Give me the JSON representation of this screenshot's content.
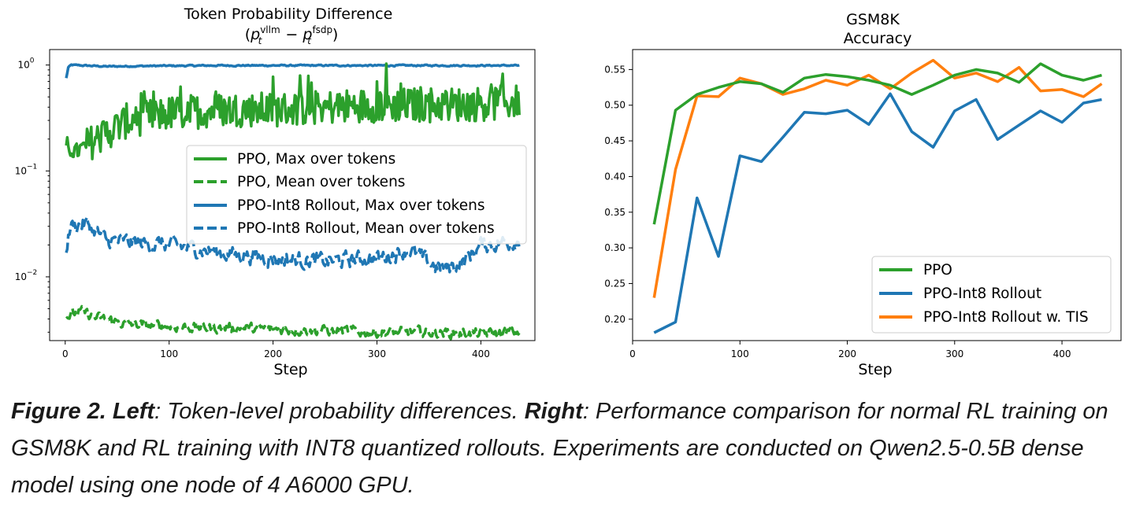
{
  "colors": {
    "green": "#2ca02c",
    "blue": "#1f77b4",
    "orange": "#ff7f0e"
  },
  "chart_data": [
    {
      "type": "line",
      "title": "Token Probability Difference",
      "subtitle_parts": {
        "open": "(",
        "p": "p",
        "t": "t",
        "sup1": "vllm",
        "minus": " − ",
        "sup2": "fsdp",
        "close": ")"
      },
      "xlabel": "Step",
      "ylabel": "",
      "yscale": "log",
      "xlim": [
        -15,
        452
      ],
      "ylim": [
        0.0025,
        1.4
      ],
      "xticks": [
        0,
        100,
        200,
        300,
        400
      ],
      "xtick_labels": [
        "0",
        "100",
        "200",
        "300",
        "400"
      ],
      "yticks": [
        1,
        0.1,
        0.01
      ],
      "ytick_labels": [
        {
          "base": "10",
          "exp": "0"
        },
        {
          "base": "10",
          "exp": "−1"
        },
        {
          "base": "10",
          "exp": "−2"
        }
      ],
      "legend_location": "center-right",
      "series": [
        {
          "name": "PPO, Max over tokens",
          "color": "green",
          "style": "solid",
          "trend": [
            [
              1,
              0.17
            ],
            [
              10,
              0.15
            ],
            [
              30,
              0.2
            ],
            [
              60,
              0.3
            ],
            [
              100,
              0.35
            ],
            [
              150,
              0.38
            ],
            [
              200,
              0.38
            ],
            [
              250,
              0.4
            ],
            [
              300,
              0.42
            ],
            [
              350,
              0.42
            ],
            [
              400,
              0.43
            ],
            [
              437,
              0.45
            ]
          ]
        },
        {
          "name": "PPO, Mean over tokens",
          "color": "green",
          "style": "dashed",
          "trend": [
            [
              1,
              0.0042
            ],
            [
              15,
              0.0047
            ],
            [
              30,
              0.0041
            ],
            [
              60,
              0.0036
            ],
            [
              100,
              0.0034
            ],
            [
              150,
              0.0033
            ],
            [
              200,
              0.0032
            ],
            [
              250,
              0.0031
            ],
            [
              300,
              0.003
            ],
            [
              350,
              0.003
            ],
            [
              400,
              0.0029
            ],
            [
              437,
              0.003
            ]
          ]
        },
        {
          "name": "PPO-Int8 Rollout, Max over tokens",
          "color": "blue",
          "style": "solid",
          "trend": [
            [
              1,
              0.75
            ],
            [
              3,
              0.95
            ],
            [
              6,
              1.0
            ],
            [
              40,
              0.97
            ],
            [
              80,
              0.98
            ],
            [
              150,
              0.99
            ],
            [
              250,
              0.99
            ],
            [
              350,
              0.99
            ],
            [
              437,
              0.99
            ]
          ]
        },
        {
          "name": "PPO-Int8 Rollout, Mean over tokens",
          "color": "blue",
          "style": "dashed",
          "trend": [
            [
              1,
              0.019
            ],
            [
              5,
              0.03
            ],
            [
              20,
              0.032
            ],
            [
              40,
              0.022
            ],
            [
              70,
              0.021
            ],
            [
              100,
              0.02
            ],
            [
              150,
              0.017
            ],
            [
              200,
              0.015
            ],
            [
              250,
              0.014
            ],
            [
              300,
              0.015
            ],
            [
              330,
              0.018
            ],
            [
              360,
              0.012
            ],
            [
              380,
              0.013
            ],
            [
              400,
              0.02
            ],
            [
              420,
              0.021
            ],
            [
              437,
              0.022
            ]
          ]
        }
      ]
    },
    {
      "type": "line",
      "title": "GSM8K",
      "subtitle": "Accuracy",
      "xlabel": "Step",
      "ylabel": "",
      "xlim": [
        0,
        455
      ],
      "ylim": [
        0.17,
        0.578
      ],
      "xticks": [
        0,
        100,
        200,
        300,
        400
      ],
      "xtick_labels": [
        "0",
        "100",
        "200",
        "300",
        "400"
      ],
      "yticks": [
        0.2,
        0.25,
        0.3,
        0.35,
        0.4,
        0.45,
        0.5,
        0.55
      ],
      "ytick_labels": [
        "0.20",
        "0.25",
        "0.30",
        "0.35",
        "0.40",
        "0.45",
        "0.50",
        "0.55"
      ],
      "legend_location": "lower-right",
      "x": [
        20,
        40,
        60,
        80,
        100,
        120,
        140,
        160,
        180,
        200,
        220,
        240,
        260,
        280,
        300,
        320,
        340,
        360,
        380,
        400,
        420,
        437
      ],
      "series": [
        {
          "name": "PPO",
          "color": "green",
          "values": [
            0.333,
            0.493,
            0.515,
            0.525,
            0.533,
            0.53,
            0.518,
            0.538,
            0.543,
            0.54,
            0.535,
            0.528,
            0.515,
            0.528,
            0.542,
            0.55,
            0.545,
            0.532,
            0.558,
            0.542,
            0.535,
            0.542
          ]
        },
        {
          "name": "PPO-Int8 Rollout",
          "color": "blue",
          "values": [
            0.181,
            0.196,
            0.37,
            0.288,
            0.429,
            0.421,
            0.455,
            0.49,
            0.488,
            0.493,
            0.473,
            0.516,
            0.463,
            0.441,
            0.492,
            0.508,
            0.452,
            0.472,
            0.492,
            0.476,
            0.503,
            0.508
          ]
        },
        {
          "name": "PPO-Int8 Rollout w. TIS",
          "color": "orange",
          "values": [
            0.23,
            0.41,
            0.513,
            0.512,
            0.538,
            0.53,
            0.515,
            0.523,
            0.535,
            0.528,
            0.542,
            0.523,
            0.545,
            0.563,
            0.538,
            0.545,
            0.533,
            0.553,
            0.52,
            0.522,
            0.512,
            0.53
          ]
        }
      ]
    }
  ],
  "caption": {
    "fig_label": "Figure 2.",
    "left_label": "Left",
    "left_text": ": Token-level probability differences. ",
    "right_label": "Right",
    "right_text": ": Performance comparison for normal RL training on GSM8K and RL training with INT8 quantized rollouts. Experiments are conducted on Qwen2.5-0.5B dense model using one node of 4 A6000 GPU."
  }
}
